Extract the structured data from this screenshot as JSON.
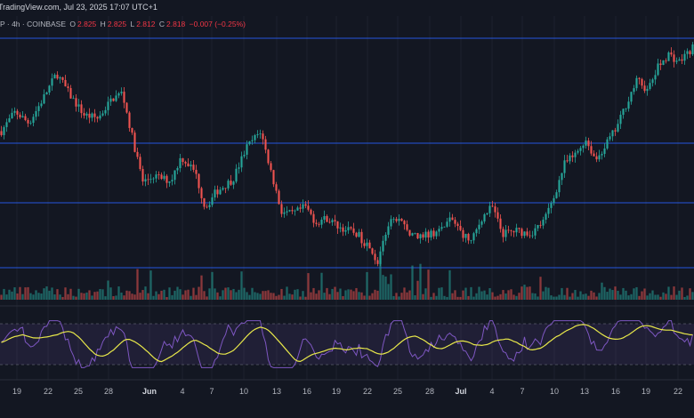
{
  "header": {
    "source": "TradingView.com, Jul 23, 2025 17:07 UTC+1"
  },
  "legend": {
    "symbol_info": "P · 4h · COINBASE",
    "open_label": "O",
    "open": "2.825",
    "high_label": "H",
    "high": "2.825",
    "low_label": "L",
    "low": "2.812",
    "close_label": "C",
    "close": "2.818",
    "change": "−0.007 (−0.25%)"
  },
  "colors": {
    "background": "#131722",
    "up": "#26a69a",
    "down": "#ef5350",
    "horizontal_lines": "#2962ff",
    "rsi_line": "#7e57c2",
    "rsi_ma": "#e8e84a",
    "rsi_band": "#7e57c2"
  },
  "chart_data": {
    "type": "candlestick",
    "price_levels": [
      "level_1",
      "level_2",
      "level_3",
      "level_4"
    ],
    "price_path": [
      {
        "t": 0.0,
        "p": 2.3
      },
      {
        "t": 0.02,
        "p": 2.42
      },
      {
        "t": 0.04,
        "p": 2.35
      },
      {
        "t": 0.06,
        "p": 2.5
      },
      {
        "t": 0.08,
        "p": 2.66
      },
      {
        "t": 0.1,
        "p": 2.52
      },
      {
        "t": 0.12,
        "p": 2.4
      },
      {
        "t": 0.14,
        "p": 2.38
      },
      {
        "t": 0.16,
        "p": 2.5
      },
      {
        "t": 0.175,
        "p": 2.54
      },
      {
        "t": 0.19,
        "p": 2.25
      },
      {
        "t": 0.205,
        "p": 1.98
      },
      {
        "t": 0.22,
        "p": 2.02
      },
      {
        "t": 0.245,
        "p": 1.99
      },
      {
        "t": 0.26,
        "p": 2.14
      },
      {
        "t": 0.28,
        "p": 2.05
      },
      {
        "t": 0.295,
        "p": 1.82
      },
      {
        "t": 0.31,
        "p": 1.92
      },
      {
        "t": 0.335,
        "p": 2.0
      },
      {
        "t": 0.355,
        "p": 2.2
      },
      {
        "t": 0.375,
        "p": 2.3
      },
      {
        "t": 0.39,
        "p": 2.05
      },
      {
        "t": 0.405,
        "p": 1.8
      },
      {
        "t": 0.42,
        "p": 1.78
      },
      {
        "t": 0.44,
        "p": 1.83
      },
      {
        "t": 0.455,
        "p": 1.73
      },
      {
        "t": 0.47,
        "p": 1.76
      },
      {
        "t": 0.49,
        "p": 1.7
      },
      {
        "t": 0.515,
        "p": 1.66
      },
      {
        "t": 0.53,
        "p": 1.58
      },
      {
        "t": 0.545,
        "p": 1.48
      },
      {
        "t": 0.56,
        "p": 1.72
      },
      {
        "t": 0.575,
        "p": 1.76
      },
      {
        "t": 0.595,
        "p": 1.64
      },
      {
        "t": 0.615,
        "p": 1.66
      },
      {
        "t": 0.635,
        "p": 1.68
      },
      {
        "t": 0.65,
        "p": 1.76
      },
      {
        "t": 0.665,
        "p": 1.67
      },
      {
        "t": 0.68,
        "p": 1.61
      },
      {
        "t": 0.695,
        "p": 1.76
      },
      {
        "t": 0.71,
        "p": 1.83
      },
      {
        "t": 0.725,
        "p": 1.66
      },
      {
        "t": 0.745,
        "p": 1.68
      },
      {
        "t": 0.765,
        "p": 1.66
      },
      {
        "t": 0.785,
        "p": 1.74
      },
      {
        "t": 0.8,
        "p": 1.9
      },
      {
        "t": 0.815,
        "p": 2.1
      },
      {
        "t": 0.83,
        "p": 2.15
      },
      {
        "t": 0.845,
        "p": 2.25
      },
      {
        "t": 0.86,
        "p": 2.12
      },
      {
        "t": 0.875,
        "p": 2.22
      },
      {
        "t": 0.89,
        "p": 2.32
      },
      {
        "t": 0.905,
        "p": 2.48
      },
      {
        "t": 0.92,
        "p": 2.62
      },
      {
        "t": 0.935,
        "p": 2.55
      },
      {
        "t": 0.95,
        "p": 2.7
      },
      {
        "t": 0.965,
        "p": 2.78
      },
      {
        "t": 0.98,
        "p": 2.73
      },
      {
        "t": 1.0,
        "p": 2.82
      }
    ],
    "x_tick_labels": [
      "19",
      "22",
      "25",
      "28",
      "Jun",
      "4",
      "7",
      "10",
      "13",
      "16",
      "19",
      "22",
      "25",
      "28",
      "Jul",
      "4",
      "7",
      "10",
      "13",
      "16",
      "19",
      "22"
    ],
    "major_ticks": [
      "Jun",
      "Jul"
    ]
  }
}
